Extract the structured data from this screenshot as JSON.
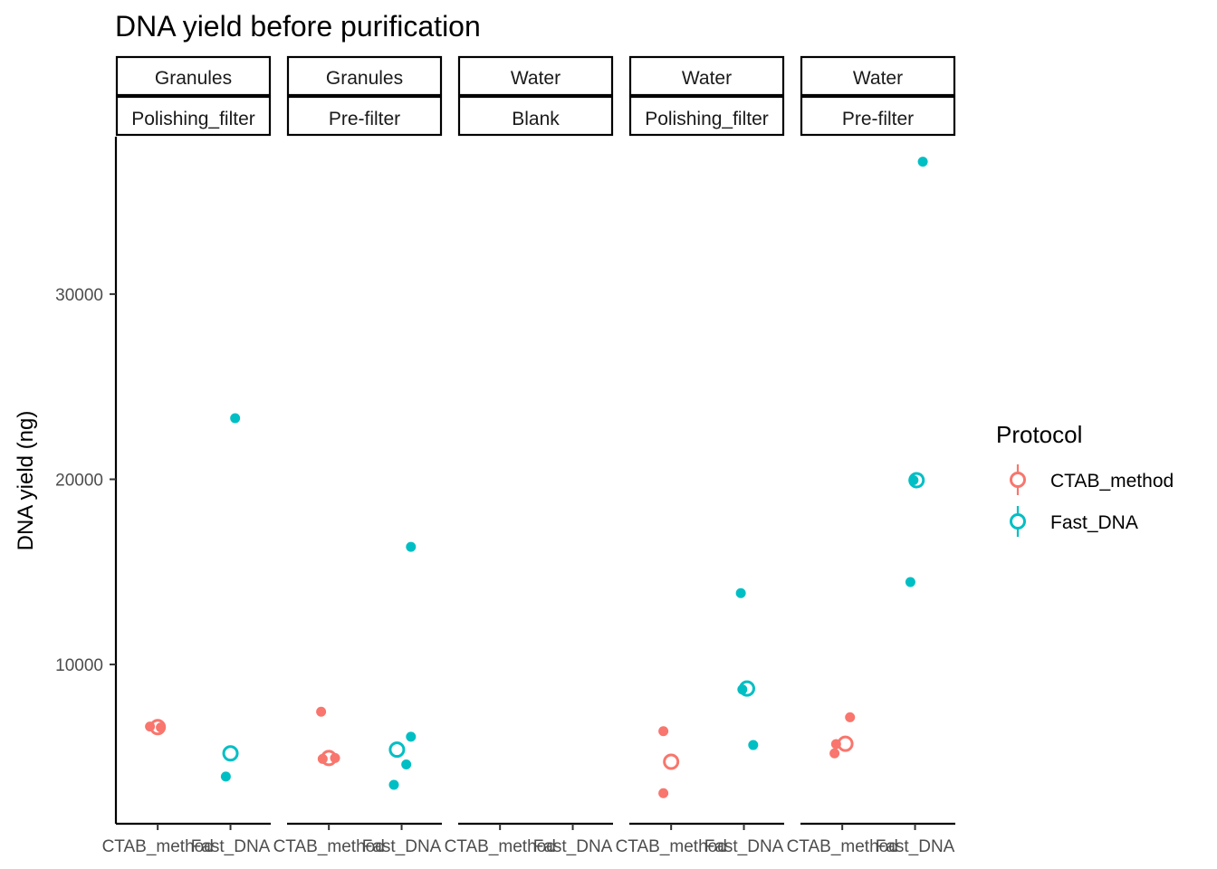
{
  "chart_data": {
    "type": "scatter",
    "title": "DNA yield before purification",
    "ylabel": "DNA yield (ng)",
    "xlabel": "",
    "ylim": [
      1400,
      38500
    ],
    "y_ticks": [
      10000,
      20000,
      30000
    ],
    "y_tick_labels": [
      "10000",
      "20000",
      "30000"
    ],
    "categories": [
      "CTAB_method",
      "Fast_DNA"
    ],
    "legend": {
      "title": "Protocol",
      "position": "right",
      "entries": [
        "CTAB_method",
        "Fast_DNA"
      ]
    },
    "colors": {
      "CTAB_method": "#F8766D",
      "Fast_DNA": "#00BFC4"
    },
    "facets": [
      {
        "strip_top": "Granules",
        "strip_bottom": "Polishing_filter",
        "points": [
          {
            "protocol": "CTAB_method",
            "y": 6650,
            "jitter": -0.05
          },
          {
            "protocol": "CTAB_method",
            "y": 6600,
            "jitter": 0.02
          },
          {
            "protocol": "Fast_DNA",
            "y": 23300,
            "jitter": 0.03
          },
          {
            "protocol": "Fast_DNA",
            "y": 3950,
            "jitter": -0.03
          }
        ],
        "means": [
          {
            "protocol": "CTAB_method",
            "y": 6620,
            "jitter": 0.0
          },
          {
            "protocol": "Fast_DNA",
            "y": 5200,
            "jitter": 0.0
          }
        ]
      },
      {
        "strip_top": "Granules",
        "strip_bottom": "Pre-filter",
        "points": [
          {
            "protocol": "CTAB_method",
            "y": 7450,
            "jitter": -0.05
          },
          {
            "protocol": "CTAB_method",
            "y": 4900,
            "jitter": -0.04
          },
          {
            "protocol": "CTAB_method",
            "y": 4950,
            "jitter": 0.04
          },
          {
            "protocol": "Fast_DNA",
            "y": 16350,
            "jitter": 0.06
          },
          {
            "protocol": "Fast_DNA",
            "y": 6100,
            "jitter": 0.06
          },
          {
            "protocol": "Fast_DNA",
            "y": 4600,
            "jitter": 0.03
          },
          {
            "protocol": "Fast_DNA",
            "y": 3500,
            "jitter": -0.05
          }
        ],
        "means": [
          {
            "protocol": "CTAB_method",
            "y": 4950,
            "jitter": 0.0
          },
          {
            "protocol": "Fast_DNA",
            "y": 5400,
            "jitter": -0.03
          }
        ]
      },
      {
        "strip_top": "Water",
        "strip_bottom": "Blank",
        "points": [],
        "means": []
      },
      {
        "strip_top": "Water",
        "strip_bottom": "Polishing_filter",
        "points": [
          {
            "protocol": "CTAB_method",
            "y": 6400,
            "jitter": -0.05
          },
          {
            "protocol": "CTAB_method",
            "y": 3050,
            "jitter": -0.05
          },
          {
            "protocol": "Fast_DNA",
            "y": 13850,
            "jitter": -0.02
          },
          {
            "protocol": "Fast_DNA",
            "y": 5650,
            "jitter": 0.06
          },
          {
            "protocol": "Fast_DNA",
            "y": 8650,
            "jitter": -0.01
          }
        ],
        "means": [
          {
            "protocol": "CTAB_method",
            "y": 4750,
            "jitter": 0.0
          },
          {
            "protocol": "Fast_DNA",
            "y": 8700,
            "jitter": 0.02
          }
        ]
      },
      {
        "strip_top": "Water",
        "strip_bottom": "Pre-filter",
        "points": [
          {
            "protocol": "CTAB_method",
            "y": 7150,
            "jitter": 0.05
          },
          {
            "protocol": "CTAB_method",
            "y": 5700,
            "jitter": -0.04
          },
          {
            "protocol": "CTAB_method",
            "y": 5200,
            "jitter": -0.05
          },
          {
            "protocol": "Fast_DNA",
            "y": 37150,
            "jitter": 0.05
          },
          {
            "protocol": "Fast_DNA",
            "y": 19950,
            "jitter": -0.01
          },
          {
            "protocol": "Fast_DNA",
            "y": 14450,
            "jitter": -0.03
          }
        ],
        "means": [
          {
            "protocol": "CTAB_method",
            "y": 5720,
            "jitter": 0.02
          },
          {
            "protocol": "Fast_DNA",
            "y": 19950,
            "jitter": 0.01
          }
        ]
      }
    ]
  }
}
